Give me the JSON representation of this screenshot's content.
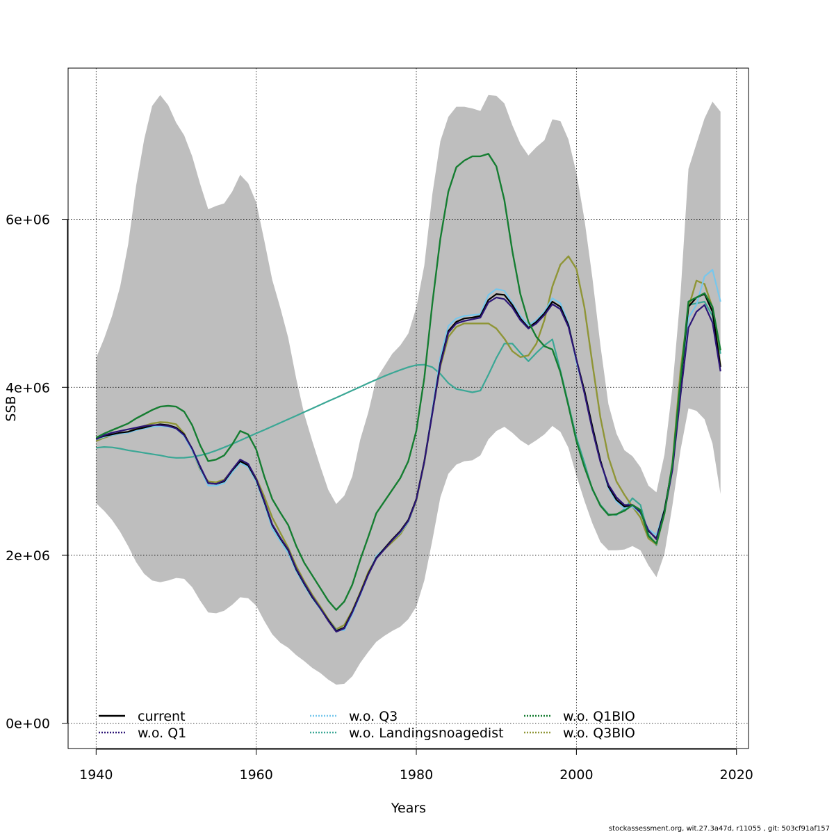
{
  "footer_text": "stockassessment.org, wit.27.3a47d, r11055 , git: 503cf91af157",
  "chart_data": {
    "type": "line",
    "title": "",
    "xlabel": "Years",
    "ylabel": "SSB",
    "xlim": [
      1936.5,
      2021.5
    ],
    "ylim": [
      -300000,
      7800000
    ],
    "x_ticks": [
      1940,
      1960,
      1980,
      2000,
      2020
    ],
    "y_ticks": [
      0,
      2000000,
      4000000,
      6000000
    ],
    "y_tick_labels": [
      "0e+00",
      "2e+06",
      "4e+06",
      "6e+06"
    ],
    "grid": true,
    "legend_position": "bottom",
    "x": [
      1940,
      1941,
      1942,
      1943,
      1944,
      1945,
      1946,
      1947,
      1948,
      1949,
      1950,
      1951,
      1952,
      1953,
      1954,
      1955,
      1956,
      1957,
      1958,
      1959,
      1960,
      1961,
      1962,
      1963,
      1964,
      1965,
      1966,
      1967,
      1968,
      1969,
      1970,
      1971,
      1972,
      1973,
      1974,
      1975,
      1976,
      1977,
      1978,
      1979,
      1980,
      1981,
      1982,
      1983,
      1984,
      1985,
      1986,
      1987,
      1988,
      1989,
      1990,
      1991,
      1992,
      1993,
      1994,
      1995,
      1996,
      1997,
      1998,
      1999,
      2000,
      2001,
      2002,
      2003,
      2004,
      2005,
      2006,
      2007,
      2008,
      2009,
      2010,
      2011,
      2012,
      2013,
      2014,
      2015,
      2016,
      2017,
      2018
    ],
    "band": {
      "color": "#bebebe",
      "upper": [
        4350000,
        4580000,
        4850000,
        5200000,
        5700000,
        6400000,
        6950000,
        7350000,
        7480000,
        7360000,
        7150000,
        7000000,
        6750000,
        6420000,
        6120000,
        6160000,
        6190000,
        6330000,
        6530000,
        6430000,
        6200000,
        5750000,
        5280000,
        4950000,
        4590000,
        4100000,
        3680000,
        3360000,
        3060000,
        2780000,
        2610000,
        2710000,
        2940000,
        3380000,
        3700000,
        4100000,
        4250000,
        4400000,
        4500000,
        4640000,
        4950000,
        5450000,
        6300000,
        6930000,
        7220000,
        7340000,
        7340000,
        7320000,
        7290000,
        7480000,
        7470000,
        7380000,
        7120000,
        6900000,
        6760000,
        6860000,
        6940000,
        7190000,
        7170000,
        6950000,
        6550000,
        6000000,
        5300000,
        4500000,
        3800000,
        3450000,
        3250000,
        3180000,
        3050000,
        2830000,
        2750000,
        3200000,
        4000000,
        5100000,
        6600000,
        6900000,
        7200000,
        7400000,
        7280000
      ],
      "lower": [
        2620000,
        2530000,
        2420000,
        2280000,
        2110000,
        1920000,
        1780000,
        1700000,
        1680000,
        1700000,
        1730000,
        1720000,
        1620000,
        1460000,
        1320000,
        1310000,
        1340000,
        1410000,
        1500000,
        1490000,
        1400000,
        1220000,
        1060000,
        960000,
        900000,
        810000,
        740000,
        660000,
        600000,
        520000,
        460000,
        470000,
        560000,
        720000,
        850000,
        970000,
        1040000,
        1100000,
        1150000,
        1240000,
        1390000,
        1700000,
        2180000,
        2690000,
        2970000,
        3080000,
        3120000,
        3130000,
        3190000,
        3380000,
        3480000,
        3530000,
        3460000,
        3370000,
        3310000,
        3370000,
        3440000,
        3540000,
        3470000,
        3280000,
        2950000,
        2650000,
        2380000,
        2160000,
        2060000,
        2060000,
        2070000,
        2110000,
        2060000,
        1880000,
        1740000,
        2020000,
        2600000,
        3250000,
        3750000,
        3720000,
        3620000,
        3330000,
        2730000
      ]
    },
    "series": [
      {
        "name": "w.o. Landingsnoagedist",
        "color": "#3aa795",
        "dash": "",
        "width": 2.2,
        "values": [
          3280000,
          3290000,
          3285000,
          3270000,
          3250000,
          3235000,
          3220000,
          3205000,
          3190000,
          3170000,
          3160000,
          3162000,
          3172000,
          3190000,
          3215000,
          3248000,
          3285000,
          3325000,
          3368000,
          3410000,
          3452000,
          3493000,
          3535000,
          3577000,
          3620000,
          3662000,
          3705000,
          3748000,
          3791000,
          3834000,
          3877000,
          3920000,
          3963000,
          4006000,
          4050000,
          4092000,
          4133000,
          4171000,
          4207000,
          4240000,
          4265000,
          4270000,
          4240000,
          4160000,
          4050000,
          3980000,
          3960000,
          3940000,
          3960000,
          4150000,
          4350000,
          4520000,
          4520000,
          4410000,
          4310000,
          4410000,
          4500000,
          4570000,
          4200000,
          3800000,
          3400000,
          3100000,
          2780000,
          2600000,
          2490000,
          2480000,
          2550000,
          2680000,
          2600000,
          2250000,
          2120000,
          2520000,
          3100000,
          4000000,
          4980000,
          5000000,
          5020000,
          4850000,
          4400000
        ]
      },
      {
        "name": "w.o. Q3BIO",
        "color": "#8f9536",
        "dash": "",
        "width": 2.4,
        "values": [
          3360000,
          3400000,
          3430000,
          3450000,
          3470000,
          3510000,
          3540000,
          3570000,
          3585000,
          3580000,
          3560000,
          3450000,
          3250000,
          3020000,
          2880000,
          2870000,
          2900000,
          3010000,
          3100000,
          3070000,
          2920000,
          2700000,
          2450000,
          2270000,
          2090000,
          1870000,
          1690000,
          1530000,
          1390000,
          1240000,
          1120000,
          1170000,
          1340000,
          1560000,
          1800000,
          1970000,
          2070000,
          2160000,
          2250000,
          2400000,
          2650000,
          3100000,
          3700000,
          4250000,
          4600000,
          4720000,
          4760000,
          4760000,
          4760000,
          4760000,
          4700000,
          4580000,
          4430000,
          4360000,
          4380000,
          4520000,
          4800000,
          5200000,
          5460000,
          5560000,
          5410000,
          4950000,
          4280000,
          3640000,
          3170000,
          2880000,
          2720000,
          2580000,
          2450000,
          2200000,
          2130000,
          2500000,
          3100000,
          4200000,
          4950000,
          5270000,
          5230000,
          4950000,
          4250000
        ]
      },
      {
        "name": "w.o. Q3",
        "color": "#77c7ec",
        "dash": "",
        "width": 2.2,
        "values": [
          3380000,
          3410000,
          3430000,
          3450000,
          3460000,
          3490000,
          3510000,
          3530000,
          3540000,
          3530000,
          3510000,
          3420000,
          3250000,
          3030000,
          2830000,
          2830000,
          2860000,
          2990000,
          3100000,
          3050000,
          2880000,
          2620000,
          2320000,
          2170000,
          2030000,
          1810000,
          1640000,
          1490000,
          1360000,
          1230000,
          1110000,
          1110000,
          1300000,
          1530000,
          1770000,
          1990000,
          2080000,
          2180000,
          2270000,
          2400000,
          2660000,
          3110000,
          3730000,
          4360000,
          4730000,
          4820000,
          4850000,
          4860000,
          4870000,
          5100000,
          5170000,
          5150000,
          5000000,
          4850000,
          4740000,
          4800000,
          4900000,
          5060000,
          5000000,
          4760000,
          4300000,
          3950000,
          3530000,
          3130000,
          2800000,
          2640000,
          2560000,
          2580000,
          2500000,
          2310000,
          2240000,
          2550000,
          3050000,
          4020000,
          4830000,
          4980000,
          5320000,
          5400000,
          5020000
        ]
      },
      {
        "name": "current",
        "color": "#000000",
        "dash": "",
        "width": 2.2,
        "values": [
          3390000,
          3420000,
          3440000,
          3460000,
          3470000,
          3500000,
          3520000,
          3545000,
          3560000,
          3550000,
          3520000,
          3440000,
          3270000,
          3050000,
          2860000,
          2850000,
          2880000,
          3010000,
          3120000,
          3070000,
          2900000,
          2640000,
          2360000,
          2200000,
          2060000,
          1830000,
          1660000,
          1500000,
          1370000,
          1230000,
          1100000,
          1140000,
          1330000,
          1550000,
          1780000,
          1970000,
          2080000,
          2190000,
          2290000,
          2420000,
          2670000,
          3120000,
          3700000,
          4290000,
          4670000,
          4780000,
          4820000,
          4830000,
          4850000,
          5040000,
          5110000,
          5100000,
          4980000,
          4820000,
          4710000,
          4780000,
          4880000,
          5020000,
          4960000,
          4740000,
          4330000,
          3960000,
          3530000,
          3130000,
          2820000,
          2660000,
          2580000,
          2600000,
          2520000,
          2290000,
          2200000,
          2540000,
          3070000,
          4030000,
          4960000,
          5070000,
          5110000,
          4900000,
          4240000
        ]
      },
      {
        "name": "w.o. Q1",
        "color": "#2c1577",
        "dash": "",
        "width": 2.2,
        "values": [
          3380000,
          3430000,
          3460000,
          3480000,
          3500000,
          3520000,
          3540000,
          3550000,
          3550000,
          3540000,
          3510000,
          3430000,
          3270000,
          3060000,
          2860000,
          2850000,
          2890000,
          3020000,
          3140000,
          3090000,
          2910000,
          2650000,
          2370000,
          2210000,
          2070000,
          1840000,
          1670000,
          1510000,
          1370000,
          1220000,
          1090000,
          1130000,
          1320000,
          1540000,
          1770000,
          1960000,
          2070000,
          2180000,
          2280000,
          2410000,
          2660000,
          3110000,
          3690000,
          4270000,
          4650000,
          4760000,
          4790000,
          4810000,
          4830000,
          5010000,
          5070000,
          5050000,
          4950000,
          4800000,
          4700000,
          4760000,
          4860000,
          4990000,
          4930000,
          4720000,
          4330000,
          3930000,
          3490000,
          3110000,
          2840000,
          2690000,
          2600000,
          2600000,
          2510000,
          2300000,
          2190000,
          2510000,
          3020000,
          3900000,
          4710000,
          4900000,
          4980000,
          4770000,
          4190000
        ]
      },
      {
        "name": "w.o. Q1BIO",
        "color": "#157d31",
        "dash": "",
        "width": 2.4,
        "values": [
          3400000,
          3450000,
          3490000,
          3530000,
          3570000,
          3630000,
          3680000,
          3730000,
          3770000,
          3780000,
          3770000,
          3710000,
          3550000,
          3310000,
          3120000,
          3140000,
          3190000,
          3320000,
          3480000,
          3440000,
          3260000,
          2940000,
          2670000,
          2510000,
          2360000,
          2110000,
          1910000,
          1760000,
          1610000,
          1460000,
          1350000,
          1450000,
          1650000,
          1950000,
          2220000,
          2500000,
          2640000,
          2780000,
          2920000,
          3120000,
          3480000,
          4110000,
          5000000,
          5770000,
          6330000,
          6620000,
          6700000,
          6750000,
          6750000,
          6780000,
          6630000,
          6230000,
          5620000,
          5110000,
          4780000,
          4600000,
          4490000,
          4450000,
          4180000,
          3780000,
          3360000,
          3050000,
          2790000,
          2590000,
          2480000,
          2490000,
          2530000,
          2600000,
          2540000,
          2230000,
          2140000,
          2500000,
          3090000,
          4080000,
          5020000,
          5070000,
          5120000,
          4960000,
          4440000
        ]
      }
    ],
    "legend": [
      {
        "name": "current",
        "color": "#000000",
        "style": "solid"
      },
      {
        "name": "w.o. Q1",
        "color": "#2c1577",
        "style": "dotted"
      },
      {
        "name": "w.o. Q3",
        "color": "#77c7ec",
        "style": "dotted"
      },
      {
        "name": "w.o. Landingsnoagedist",
        "color": "#3aa795",
        "style": "dotted"
      },
      {
        "name": "w.o. Q1BIO",
        "color": "#157d31",
        "style": "dotted"
      },
      {
        "name": "w.o. Q3BIO",
        "color": "#8f9536",
        "style": "dotted"
      }
    ]
  }
}
